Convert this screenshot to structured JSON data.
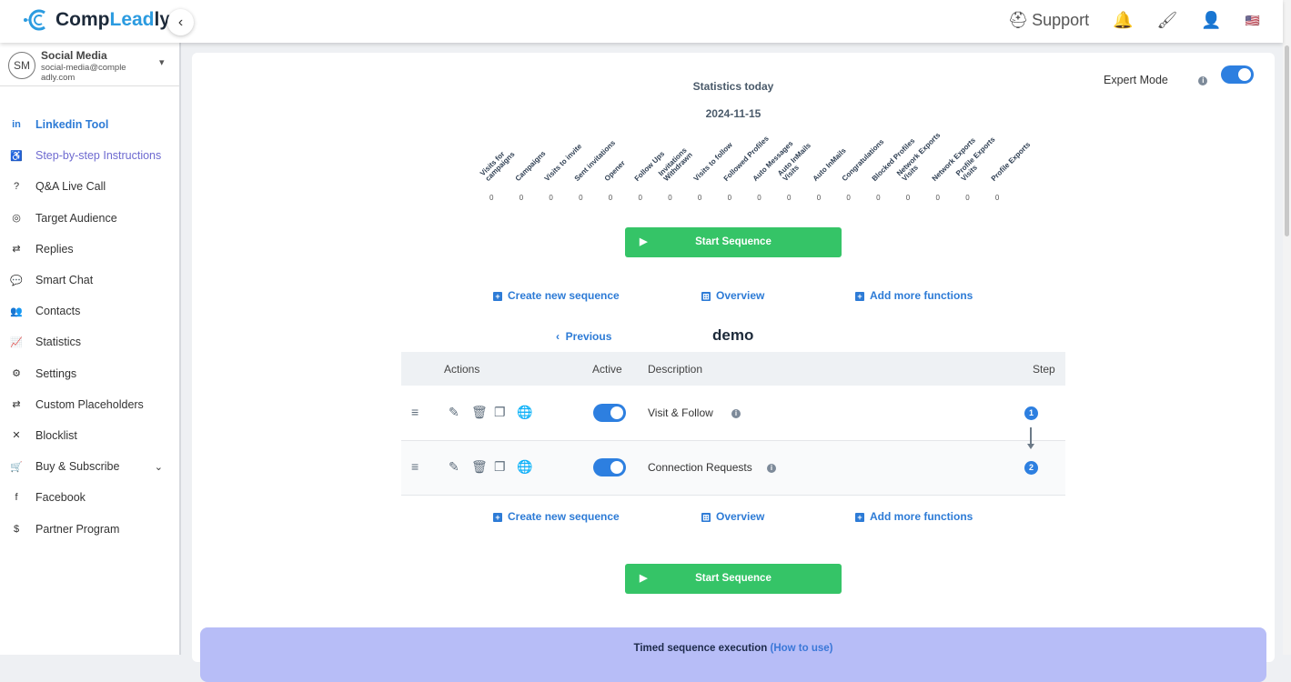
{
  "app": {
    "brand_part1": "Comp",
    "brand_part2": "Leadly",
    "brand_part3": "ly"
  },
  "topbar": {
    "support_label": "Support",
    "icons": [
      "support-icon",
      "bell-icon",
      "paint-roller-icon",
      "user-icon",
      "us-flag-icon"
    ]
  },
  "user": {
    "initials": "SM",
    "name": "Social Media",
    "email": "social-media@compleadly.com"
  },
  "sidebar": {
    "items": [
      {
        "label": "Linkedin Tool",
        "icon": "in"
      },
      {
        "label": "Step-by-step Instructions",
        "icon": "♿"
      },
      {
        "label": "Q&A Live Call",
        "icon": "?"
      },
      {
        "label": "Target Audience",
        "icon": "◎"
      },
      {
        "label": "Replies",
        "icon": "⇄"
      },
      {
        "label": "Smart Chat",
        "icon": "💬"
      },
      {
        "label": "Contacts",
        "icon": "👥"
      },
      {
        "label": "Statistics",
        "icon": "📈"
      },
      {
        "label": "Settings",
        "icon": "⚙"
      },
      {
        "label": "Custom Placeholders",
        "icon": "⇄"
      },
      {
        "label": "Blocklist",
        "icon": "✕"
      },
      {
        "label": "Buy & Subscribe",
        "icon": "🛒"
      },
      {
        "label": "Facebook",
        "icon": "f"
      },
      {
        "label": "Partner Program",
        "icon": "$"
      }
    ]
  },
  "stats": {
    "title": "Statistics today",
    "date": "2024-11-15",
    "expert_mode_label": "Expert Mode",
    "expert_mode_on": true,
    "columns": [
      {
        "label": "Visits for\ncampaigns",
        "value": "0"
      },
      {
        "label": "Campaigns",
        "value": "0"
      },
      {
        "label": "Visits to invite",
        "value": "0"
      },
      {
        "label": "Sent invitations",
        "value": "0"
      },
      {
        "label": "Opener",
        "value": "0"
      },
      {
        "label": "Follow Ups",
        "value": "0"
      },
      {
        "label": "Invitations\nWithdrawn",
        "value": "0"
      },
      {
        "label": "Visits to follow",
        "value": "0"
      },
      {
        "label": "Followed Profiles",
        "value": "0"
      },
      {
        "label": "Auto Messages",
        "value": "0"
      },
      {
        "label": "Auto InMails\nVisits",
        "value": "0"
      },
      {
        "label": "Auto InMails",
        "value": "0"
      },
      {
        "label": "Congratulations",
        "value": "0"
      },
      {
        "label": "Blocked Profiles",
        "value": "0"
      },
      {
        "label": "Network Exports\nVisits",
        "value": "0"
      },
      {
        "label": "Network Exports",
        "value": "0"
      },
      {
        "label": "Profile Exports\nVisits",
        "value": "0"
      },
      {
        "label": "Profile Exports",
        "value": "0"
      }
    ]
  },
  "actions": {
    "start_sequence": "Start Sequence",
    "create_new": "Create new sequence",
    "overview": "Overview",
    "add_more": "Add more functions",
    "previous": "Previous"
  },
  "sequence": {
    "name": "demo",
    "headers": {
      "actions": "Actions",
      "active": "Active",
      "description": "Description",
      "step": "Step"
    },
    "rows": [
      {
        "description": "Visit & Follow",
        "active": true,
        "step": "1"
      },
      {
        "description": "Connection Requests",
        "active": true,
        "step": "2"
      }
    ]
  },
  "banner": {
    "text": "Timed sequence execution",
    "link": "(How to use)"
  }
}
